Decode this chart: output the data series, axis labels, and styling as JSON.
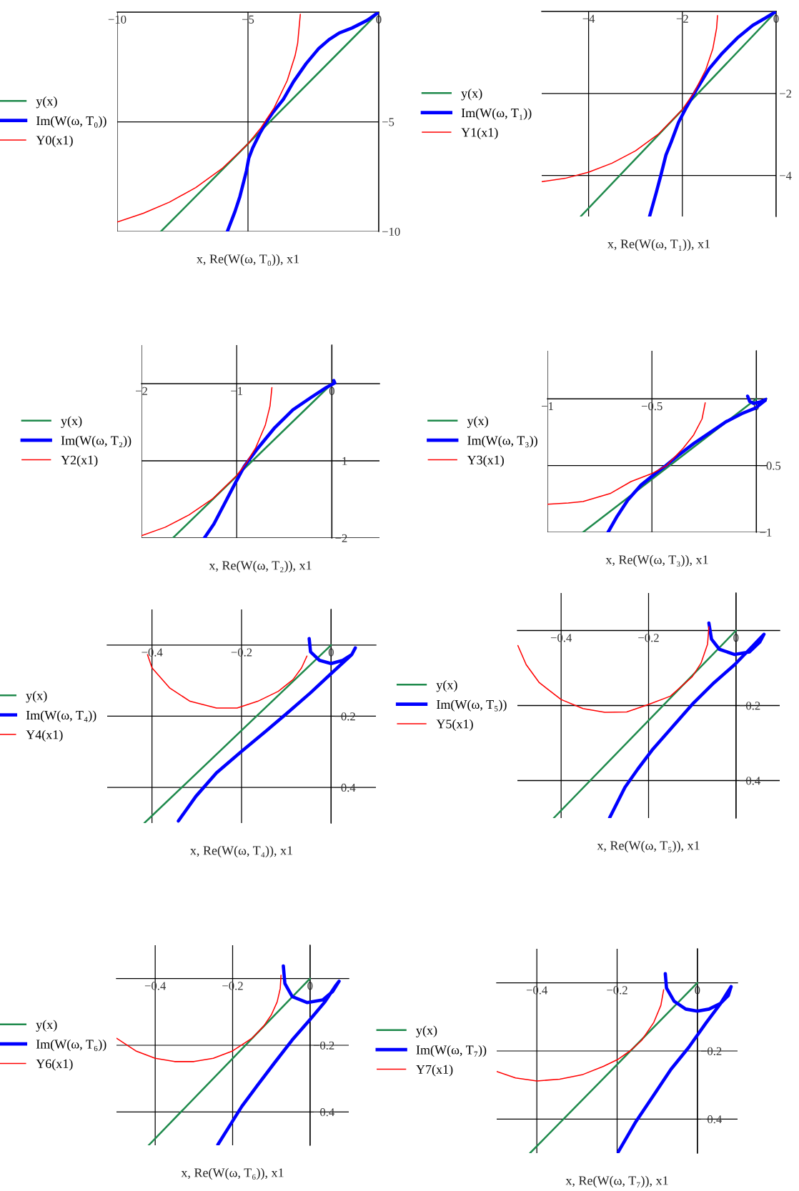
{
  "chart_data": [
    {
      "type": "line",
      "xlabel": "x, Re(W(ω, T₀)), x1",
      "xlim": [
        -10,
        0
      ],
      "ylim": [
        -10,
        0
      ],
      "xticks": [
        {
          "value": -10,
          "label": "−10"
        },
        {
          "value": -5,
          "label": "−5"
        },
        0
      ],
      "yticks": [
        {
          "value": -10,
          "label": "−10"
        },
        {
          "value": -5,
          "label": "−5"
        }
      ],
      "grid": true,
      "legend": "left",
      "series": [
        {
          "name": "y(x)",
          "color": "#1f8a4c",
          "line_style": "solid",
          "x": [
            -8.33,
            0
          ],
          "values": [
            -10,
            0
          ]
        },
        {
          "name": "Im(W(ω, T₀))",
          "color": "#0000ff",
          "line_style": "solid",
          "x": [
            0,
            -0.44,
            -1.02,
            -1.51,
            -1.9,
            -2.29,
            -2.78,
            -3.26,
            -3.65,
            -4.04,
            -4.28,
            -4.53,
            -4.82,
            -4.97,
            -5.06,
            -5.16,
            -5.31,
            -5.5,
            -5.79
          ],
          "values": [
            0,
            -0.37,
            -0.72,
            -0.95,
            -1.25,
            -1.65,
            -2.35,
            -3.17,
            -3.98,
            -4.56,
            -4.97,
            -5.49,
            -6.19,
            -6.66,
            -7.24,
            -7.71,
            -8.41,
            -9.1,
            -10
          ]
        },
        {
          "name": "Y0(x1)",
          "color": "#ff0000",
          "line_style": "solid",
          "x": [
            -10,
            -9,
            -8,
            -7,
            -6,
            -5,
            -4.5,
            -4,
            -3.5,
            -3.2,
            -3.1,
            -3.0
          ],
          "values": [
            -9.57,
            -9.17,
            -8.66,
            -8.0,
            -7.14,
            -6.0,
            -5.27,
            -4.36,
            -3.12,
            -1.99,
            -1.41,
            -0.1
          ]
        }
      ]
    },
    {
      "type": "line",
      "xlabel": "x, Re(W(ω, T₁)), x1",
      "xlim": [
        -5,
        0
      ],
      "ylim": [
        -5,
        0
      ],
      "xticks": [
        {
          "value": -4,
          "label": "−4"
        },
        {
          "value": -2,
          "label": "−2"
        },
        0
      ],
      "yticks": [
        {
          "value": -4,
          "label": "−4"
        },
        {
          "value": -2,
          "label": "−2"
        }
      ],
      "grid": true,
      "legend": "left",
      "series": [
        {
          "name": "y(x)",
          "color": "#1f8a4c",
          "line_style": "solid",
          "x": [
            -4.17,
            0
          ],
          "values": [
            -5,
            0
          ]
        },
        {
          "name": "Im(W(ω, T₁))",
          "color": "#0000ff",
          "line_style": "solid",
          "x": [
            0,
            -0.23,
            -0.5,
            -0.83,
            -1.15,
            -1.43,
            -1.72,
            -1.91,
            -2.08,
            -2.24,
            -2.35,
            -2.46,
            -2.56,
            -2.7
          ],
          "values": [
            0,
            -0.16,
            -0.34,
            -0.65,
            -1.02,
            -1.4,
            -1.95,
            -2.33,
            -2.7,
            -3.19,
            -3.5,
            -4.0,
            -4.43,
            -5.0
          ]
        },
        {
          "name": "Y1(x1)",
          "color": "#ff0000",
          "line_style": "solid",
          "x": [
            -5,
            -4.5,
            -4,
            -3.5,
            -3,
            -2.5,
            -2,
            -1.75,
            -1.5,
            -1.35,
            -1.27,
            -1.25
          ],
          "values": [
            -4.15,
            -4.07,
            -3.92,
            -3.7,
            -3.4,
            -2.98,
            -2.39,
            -1.98,
            -1.42,
            -0.91,
            -0.41,
            -0.1
          ]
        }
      ]
    },
    {
      "type": "line",
      "xlabel": "x, Re(W(ω, T₂)), x1",
      "xlim": [
        -2,
        0.5
      ],
      "ylim": [
        -2,
        0.5
      ],
      "xticks": [
        {
          "value": -2,
          "label": "−2"
        },
        {
          "value": -1,
          "label": "−1"
        },
        0
      ],
      "yticks": [
        {
          "value": -2,
          "label": "−2"
        },
        {
          "value": -1,
          "label": "−1"
        }
      ],
      "grid": true,
      "legend": "left",
      "series": [
        {
          "name": "y(x)",
          "color": "#1f8a4c",
          "line_style": "solid",
          "x": [
            -1.67,
            0
          ],
          "values": [
            -2,
            0
          ]
        },
        {
          "name": "Im(W(ω, T₂))",
          "color": "#0000ff",
          "line_style": "solid",
          "x": [
            0.02,
            0.03,
            -0.06,
            -0.22,
            -0.41,
            -0.6,
            -0.78,
            -0.92,
            -1.02,
            -1.13,
            -1.24,
            -1.34
          ],
          "values": [
            0.04,
            0.01,
            -0.05,
            -0.18,
            -0.34,
            -0.57,
            -0.84,
            -1.07,
            -1.3,
            -1.56,
            -1.82,
            -2.0
          ]
        },
        {
          "name": "Y2(x1)",
          "color": "#ff0000",
          "line_style": "solid",
          "x": [
            -2,
            -1.75,
            -1.5,
            -1.25,
            -1,
            -0.9,
            -0.8,
            -0.7,
            -0.65,
            -0.63
          ],
          "values": [
            -1.97,
            -1.86,
            -1.7,
            -1.49,
            -1.19,
            -1.03,
            -0.83,
            -0.54,
            -0.29,
            -0.05
          ]
        }
      ]
    },
    {
      "type": "line",
      "xlabel": "x, Re(W(ω, T₃)), x1",
      "xlim": [
        -1,
        0.05
      ],
      "ylim": [
        -1,
        0.36
      ],
      "xticks": [
        {
          "value": -1,
          "label": "−1"
        },
        {
          "value": -0.5,
          "label": "−0.5"
        },
        0
      ],
      "yticks": [
        {
          "value": -1,
          "label": "−1"
        },
        {
          "value": -0.5,
          "label": "−0.5"
        }
      ],
      "grid": true,
      "legend": "left",
      "series": [
        {
          "name": "y(x)",
          "color": "#1f8a4c",
          "line_style": "solid",
          "x": [
            -0.83,
            0
          ],
          "values": [
            -1,
            0
          ]
        },
        {
          "name": "Im(W(ω, T₃))",
          "color": "#0000ff",
          "line_style": "solid",
          "x": [
            -0.042,
            -0.032,
            -0.013,
            0.013,
            0.048,
            -0.006,
            -0.07,
            -0.146,
            -0.222,
            -0.298,
            -0.374,
            -0.437,
            -0.488,
            -0.552,
            -0.615,
            -0.666,
            -0.71
          ],
          "values": [
            0.02,
            -0.02,
            -0.034,
            -0.026,
            -0.004,
            -0.071,
            -0.111,
            -0.172,
            -0.253,
            -0.333,
            -0.424,
            -0.505,
            -0.566,
            -0.646,
            -0.758,
            -0.879,
            -1.0
          ]
        },
        {
          "name": "Y3(x1)",
          "color": "#ff0000",
          "line_style": "solid",
          "x": [
            -1,
            -0.9,
            -0.83,
            -0.7,
            -0.6,
            -0.5,
            -0.43,
            -0.35,
            -0.3,
            -0.26,
            -0.245
          ],
          "values": [
            -0.79,
            -0.78,
            -0.77,
            -0.71,
            -0.62,
            -0.56,
            -0.5,
            -0.37,
            -0.27,
            -0.15,
            -0.03
          ]
        }
      ]
    },
    {
      "type": "line",
      "xlabel": "x, Re(W(ω, T₄)), x1",
      "xlim": [
        -0.5,
        0.1
      ],
      "ylim": [
        -0.5,
        0.1
      ],
      "xticks": [
        {
          "value": -0.4,
          "label": "−0.4"
        },
        {
          "value": -0.2,
          "label": "−0.2"
        },
        0
      ],
      "yticks": [
        {
          "value": -0.4,
          "label": "−0.4"
        },
        {
          "value": -0.2,
          "label": "−0.2"
        }
      ],
      "grid": true,
      "legend": "left",
      "series": [
        {
          "name": "y(x)",
          "color": "#1f8a4c",
          "line_style": "solid",
          "x": [
            -0.417,
            0
          ],
          "values": [
            -0.5,
            0
          ]
        },
        {
          "name": "Im(W(ω, T₄))",
          "color": "#0000ff",
          "line_style": "solid",
          "x": [
            -0.049,
            -0.046,
            -0.026,
            0,
            0.026,
            0.046,
            0.054,
            0.046,
            0,
            -0.046,
            -0.098,
            -0.144,
            -0.203,
            -0.256,
            -0.302,
            -0.341
          ],
          "values": [
            0.018,
            -0.019,
            -0.043,
            -0.052,
            -0.043,
            -0.027,
            -0.008,
            -0.027,
            -0.08,
            -0.134,
            -0.191,
            -0.24,
            -0.302,
            -0.359,
            -0.425,
            -0.494
          ]
        },
        {
          "name": "Y4(x1)",
          "color": "#ff0000",
          "line_style": "solid",
          "x": [
            -0.41,
            -0.4,
            -0.36,
            -0.315,
            -0.256,
            -0.21,
            -0.164,
            -0.118,
            -0.085,
            -0.066,
            -0.054
          ],
          "values": [
            -0.027,
            -0.064,
            -0.121,
            -0.158,
            -0.177,
            -0.177,
            -0.158,
            -0.13,
            -0.097,
            -0.064,
            -0.031
          ]
        }
      ]
    },
    {
      "type": "line",
      "xlabel": "x, Re(W(ω, T₅)), x1",
      "xlim": [
        -0.5,
        0.1
      ],
      "ylim": [
        -0.5,
        0.1
      ],
      "xticks": [
        {
          "value": -0.4,
          "label": "−0.4"
        },
        {
          "value": -0.2,
          "label": "−0.2"
        },
        0
      ],
      "yticks": [
        {
          "value": -0.4,
          "label": "−0.4"
        },
        {
          "value": -0.2,
          "label": "−0.2"
        }
      ],
      "grid": true,
      "legend": "left",
      "series": [
        {
          "name": "y(x)",
          "color": "#1f8a4c",
          "line_style": "solid",
          "x": [
            -0.417,
            0
          ],
          "values": [
            -0.5,
            0
          ]
        },
        {
          "name": "Im(W(ω, T₅))",
          "color": "#0000ff",
          "line_style": "solid",
          "x": [
            -0.062,
            -0.056,
            -0.038,
            -0.003,
            0.031,
            0.055,
            0.064,
            0.031,
            -0.003,
            -0.05,
            -0.097,
            -0.143,
            -0.19,
            -0.225,
            -0.254,
            -0.289
          ],
          "values": [
            0.02,
            -0.023,
            -0.05,
            -0.064,
            -0.057,
            -0.03,
            -0.01,
            -0.05,
            -0.091,
            -0.139,
            -0.193,
            -0.254,
            -0.316,
            -0.37,
            -0.418,
            -0.499
          ]
        },
        {
          "name": "Y5(x1)",
          "color": "#ff0000",
          "line_style": "solid",
          "x": [
            -0.499,
            -0.48,
            -0.45,
            -0.4,
            -0.35,
            -0.3,
            -0.25,
            -0.2,
            -0.15,
            -0.1,
            -0.08,
            -0.065,
            -0.062
          ],
          "values": [
            -0.04,
            -0.091,
            -0.139,
            -0.184,
            -0.208,
            -0.218,
            -0.217,
            -0.197,
            -0.175,
            -0.123,
            -0.087,
            -0.036,
            0.01
          ]
        }
      ]
    },
    {
      "type": "line",
      "xlabel": "x, Re(W(ω, T₆)), x1",
      "xlim": [
        -0.5,
        0.1
      ],
      "ylim": [
        -0.5,
        0.1
      ],
      "xticks": [
        {
          "value": -0.4,
          "label": "−0.4"
        },
        {
          "value": -0.2,
          "label": "−0.2"
        },
        0
      ],
      "yticks": [
        {
          "value": -0.4,
          "label": "−0.4"
        },
        {
          "value": -0.2,
          "label": "−0.2"
        }
      ],
      "grid": true,
      "legend": "left",
      "series": [
        {
          "name": "y(x)",
          "color": "#1f8a4c",
          "line_style": "solid",
          "x": [
            -0.417,
            0
          ],
          "values": [
            -0.5,
            0
          ]
        },
        {
          "name": "Im(W(ω, T₆))",
          "color": "#0000ff",
          "line_style": "solid",
          "x": [
            -0.069,
            -0.065,
            -0.046,
            -0.007,
            0.033,
            0.059,
            0.075,
            0.065,
            0.039,
            0.0,
            -0.046,
            -0.092,
            -0.137,
            -0.176,
            -0.209,
            -0.238
          ],
          "values": [
            0.038,
            -0.015,
            -0.054,
            -0.072,
            -0.064,
            -0.038,
            -0.008,
            -0.023,
            -0.069,
            -0.123,
            -0.184,
            -0.253,
            -0.322,
            -0.383,
            -0.444,
            -0.498
          ]
        },
        {
          "name": "Y6(x1)",
          "color": "#ff0000",
          "line_style": "solid",
          "x": [
            -0.5,
            -0.45,
            -0.4,
            -0.35,
            -0.3,
            -0.25,
            -0.2,
            -0.15,
            -0.12,
            -0.1,
            -0.085,
            -0.077,
            -0.075
          ],
          "values": [
            -0.179,
            -0.217,
            -0.239,
            -0.249,
            -0.249,
            -0.239,
            -0.217,
            -0.179,
            -0.143,
            -0.109,
            -0.07,
            -0.03,
            0.01
          ]
        }
      ]
    },
    {
      "type": "line",
      "xlabel": "x, Re(W(ω, T₇)), x1",
      "xlim": [
        -0.5,
        0.1
      ],
      "ylim": [
        -0.5,
        0.1
      ],
      "xticks": [
        {
          "value": -0.4,
          "label": "−0.4"
        },
        {
          "value": -0.2,
          "label": "−0.2"
        },
        0
      ],
      "yticks": [
        {
          "value": -0.4,
          "label": "−0.4"
        },
        {
          "value": -0.2,
          "label": "−0.2"
        }
      ],
      "grid": true,
      "legend": "left",
      "series": [
        {
          "name": "y(x)",
          "color": "#1f8a4c",
          "line_style": "solid",
          "x": [
            -0.417,
            0
          ],
          "values": [
            -0.5,
            0
          ]
        },
        {
          "name": "Im(W(ω, T₇))",
          "color": "#0000ff",
          "line_style": "solid",
          "x": [
            -0.08,
            -0.077,
            -0.058,
            -0.029,
            0,
            0.029,
            0.058,
            0.077,
            0.084,
            0.058,
            0.022,
            -0.022,
            -0.066,
            -0.109,
            -0.153,
            -0.197
          ],
          "values": [
            0.027,
            -0.015,
            -0.054,
            -0.077,
            -0.083,
            -0.077,
            -0.06,
            -0.037,
            -0.011,
            -0.06,
            -0.117,
            -0.19,
            -0.254,
            -0.33,
            -0.407,
            -0.496
          ]
        },
        {
          "name": "Y7(x1)",
          "color": "#ff0000",
          "line_style": "solid",
          "x": [
            -0.5,
            -0.453,
            -0.4,
            -0.343,
            -0.285,
            -0.234,
            -0.197,
            -0.168,
            -0.139,
            -0.109,
            -0.091,
            -0.084
          ],
          "values": [
            -0.26,
            -0.279,
            -0.288,
            -0.283,
            -0.269,
            -0.245,
            -0.224,
            -0.2,
            -0.169,
            -0.117,
            -0.066,
            -0.02
          ]
        }
      ]
    }
  ]
}
